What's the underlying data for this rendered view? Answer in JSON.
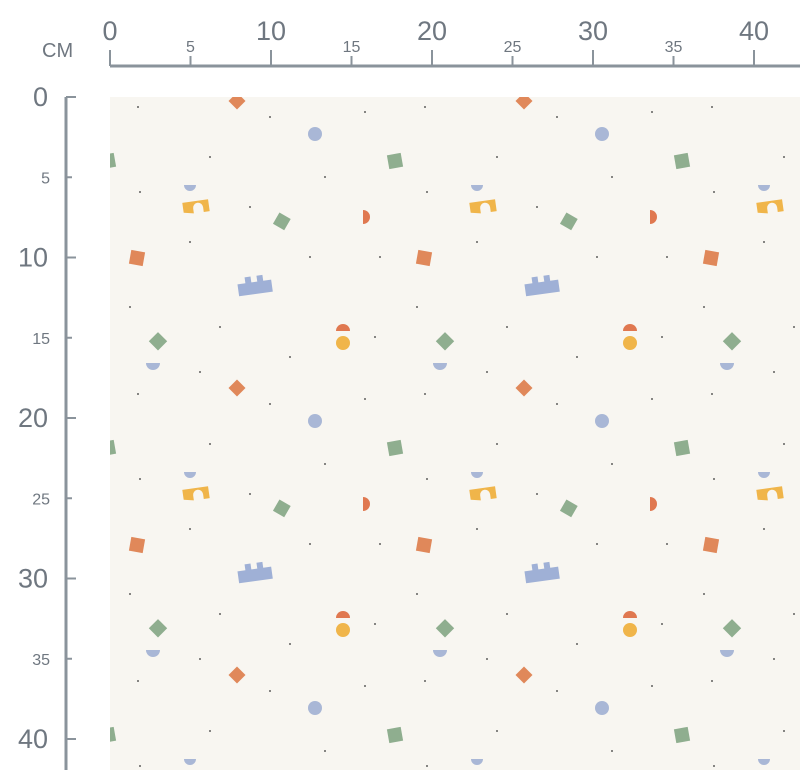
{
  "ruler": {
    "unit": "CM",
    "top_labels": [
      0,
      5,
      10,
      15,
      20,
      25,
      30,
      35,
      40
    ],
    "left_labels": [
      0,
      5,
      10,
      15,
      20,
      25,
      30,
      35,
      40
    ]
  }
}
